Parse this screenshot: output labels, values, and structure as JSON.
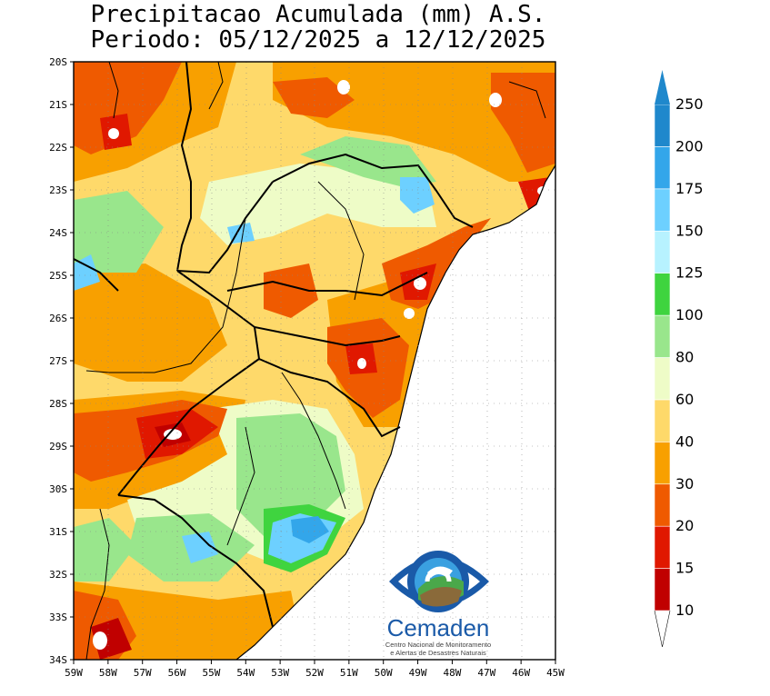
{
  "title": {
    "line1": "Precipitacao Acumulada (mm) A.S.",
    "line2": "Periodo: 05/12/2025 a 12/12/2025"
  },
  "y_axis": {
    "labels": [
      "20S",
      "21S",
      "22S",
      "23S",
      "24S",
      "25S",
      "26S",
      "27S",
      "28S",
      "29S",
      "30S",
      "31S",
      "32S",
      "33S",
      "34S"
    ]
  },
  "x_axis": {
    "labels": [
      "59W",
      "58W",
      "57W",
      "56W",
      "55W",
      "54W",
      "53W",
      "52W",
      "51W",
      "50W",
      "49W",
      "48W",
      "47W",
      "46W",
      "45W"
    ]
  },
  "colorbar": {
    "unit": "mm",
    "bins": [
      {
        "label": "10",
        "color": "#c00000"
      },
      {
        "label": "15",
        "color": "#e01800"
      },
      {
        "label": "20",
        "color": "#ef5a00"
      },
      {
        "label": "30",
        "color": "#f8a000"
      },
      {
        "label": "40",
        "color": "#fed96a"
      },
      {
        "label": "60",
        "color": "#eefcc7"
      },
      {
        "label": "80",
        "color": "#99e68c"
      },
      {
        "label": "100",
        "color": "#3fd43f"
      },
      {
        "label": "125",
        "color": "#b7f2ff"
      },
      {
        "label": "150",
        "color": "#6dd0ff"
      },
      {
        "label": "175",
        "color": "#33a6ea"
      },
      {
        "label": "200",
        "color": "#1f88cc"
      },
      {
        "label": "250",
        "color": "#1f88cc"
      }
    ]
  },
  "colors": {
    "dark_red": "#c00000",
    "red": "#e01800",
    "orange_red": "#ef5a00",
    "orange": "#f8a000",
    "yellow": "#fed96a",
    "pale_green": "#eefcc7",
    "light_green": "#99e68c",
    "green": "#3fd43f",
    "light_blue": "#6dd0ff",
    "blue": "#33a6ea"
  },
  "logo": {
    "name": "Cemaden",
    "subtitle_line1": "Centro Nacional de Monitoramento",
    "subtitle_line2": "e Alertas de Desastres Naturais"
  }
}
